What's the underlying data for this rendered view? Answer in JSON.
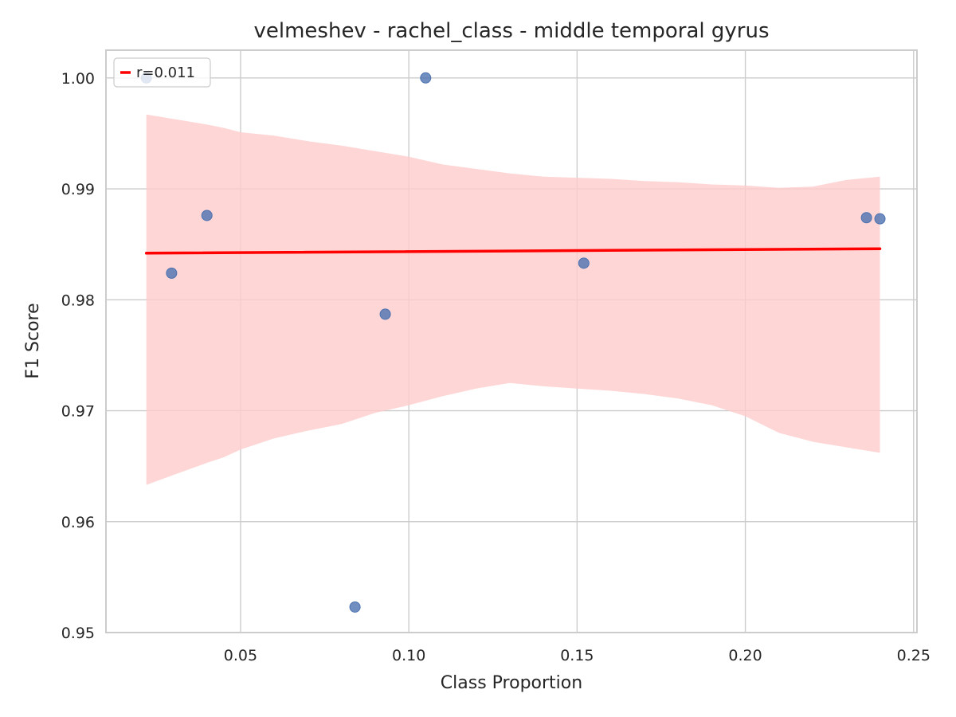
{
  "chart_data": {
    "type": "scatter",
    "title": "velmeshev - rachel_class - middle temporal gyrus",
    "xlabel": "Class Proportion",
    "ylabel": "F1 Score",
    "xlim": [
      0.01,
      0.251
    ],
    "ylim": [
      0.95,
      1.0025
    ],
    "xticks": [
      0.05,
      0.1,
      0.15,
      0.2,
      0.25
    ],
    "xtick_labels": [
      "0.05",
      "0.10",
      "0.15",
      "0.20",
      "0.25"
    ],
    "yticks": [
      0.95,
      0.96,
      0.97,
      0.98,
      0.99,
      1.0
    ],
    "ytick_labels": [
      "0.95",
      "0.96",
      "0.97",
      "0.98",
      "0.99",
      "1.00"
    ],
    "grid": true,
    "legend": {
      "position": "upper-left",
      "entries": [
        {
          "label": "r=0.011",
          "color": "#ff0000"
        }
      ]
    },
    "points": [
      {
        "x": 0.022,
        "y": 1.0
      },
      {
        "x": 0.0295,
        "y": 0.9824
      },
      {
        "x": 0.04,
        "y": 0.9876
      },
      {
        "x": 0.084,
        "y": 0.9523
      },
      {
        "x": 0.093,
        "y": 0.9787
      },
      {
        "x": 0.105,
        "y": 1.0
      },
      {
        "x": 0.152,
        "y": 0.9833
      },
      {
        "x": 0.236,
        "y": 0.9874
      },
      {
        "x": 0.24,
        "y": 0.9873
      }
    ],
    "regression": {
      "x": [
        0.022,
        0.24
      ],
      "y": [
        0.9842,
        0.9846
      ]
    },
    "confidence_band": {
      "x": [
        0.022,
        0.03,
        0.04,
        0.045,
        0.05,
        0.06,
        0.07,
        0.08,
        0.09,
        0.1,
        0.11,
        0.12,
        0.13,
        0.14,
        0.15,
        0.16,
        0.17,
        0.18,
        0.19,
        0.2,
        0.21,
        0.22,
        0.23,
        0.24
      ],
      "upper": [
        0.9967,
        0.9963,
        0.9958,
        0.9955,
        0.9951,
        0.9948,
        0.9943,
        0.9939,
        0.9934,
        0.9929,
        0.9922,
        0.9918,
        0.9914,
        0.9911,
        0.991,
        0.9909,
        0.9907,
        0.9906,
        0.9904,
        0.9903,
        0.9901,
        0.9902,
        0.9908,
        0.9911
      ],
      "lower": [
        0.9633,
        0.9642,
        0.9653,
        0.9658,
        0.9665,
        0.9675,
        0.9682,
        0.9688,
        0.9698,
        0.9705,
        0.9713,
        0.972,
        0.9725,
        0.9722,
        0.972,
        0.9718,
        0.9715,
        0.9711,
        0.9705,
        0.9695,
        0.968,
        0.9672,
        0.9667,
        0.9662
      ]
    },
    "colors": {
      "point": "#4c72b0",
      "point_overlap": "#7a6f9c",
      "regression_line": "#ff0000",
      "band": "#ffcccc",
      "grid": "#cccccc",
      "text": "#262626"
    }
  }
}
